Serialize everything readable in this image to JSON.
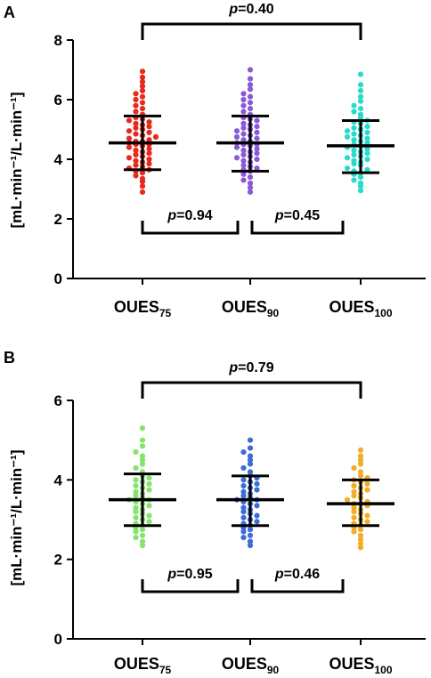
{
  "chart_data": [
    {
      "type": "scatter",
      "panel_label": "A",
      "ylabel": "[mL·min⁻¹/L·min⁻¹]",
      "ylim": [
        0,
        8
      ],
      "yticks": [
        "0",
        "2",
        "4",
        "6",
        "8"
      ],
      "categories": [
        {
          "base": "OUES",
          "sub": "75"
        },
        {
          "base": "OUES",
          "sub": "90"
        },
        {
          "base": "OUES",
          "sub": "100"
        }
      ],
      "colors": [
        "#e8291c",
        "#8a5ad6",
        "#27dccb"
      ],
      "groups": [
        {
          "mean": 4.55,
          "sd_low": 3.65,
          "sd_high": 5.45,
          "min": 2.9,
          "max": 6.95,
          "values": [
            2.9,
            3.1,
            3.25,
            3.35,
            3.45,
            3.55,
            3.6,
            3.65,
            3.7,
            3.75,
            3.8,
            3.85,
            3.9,
            3.95,
            4.0,
            4.05,
            4.1,
            4.15,
            4.2,
            4.25,
            4.3,
            4.35,
            4.4,
            4.45,
            4.5,
            4.5,
            4.55,
            4.6,
            4.6,
            4.65,
            4.7,
            4.75,
            4.8,
            4.85,
            4.9,
            4.95,
            5.0,
            5.05,
            5.1,
            5.15,
            5.2,
            5.25,
            5.3,
            5.35,
            5.4,
            5.5,
            5.6,
            5.7,
            5.8,
            5.9,
            6.0,
            6.1,
            6.2,
            6.3,
            6.45,
            6.6,
            6.75,
            6.95
          ]
        },
        {
          "mean": 4.55,
          "sd_low": 3.6,
          "sd_high": 5.45,
          "min": 2.9,
          "max": 7.0,
          "values": [
            2.9,
            3.05,
            3.2,
            3.3,
            3.4,
            3.5,
            3.6,
            3.65,
            3.7,
            3.75,
            3.8,
            3.9,
            3.95,
            4.0,
            4.05,
            4.1,
            4.15,
            4.2,
            4.25,
            4.3,
            4.35,
            4.4,
            4.45,
            4.5,
            4.5,
            4.55,
            4.6,
            4.65,
            4.7,
            4.75,
            4.8,
            4.85,
            4.9,
            4.95,
            5.0,
            5.05,
            5.1,
            5.15,
            5.2,
            5.3,
            5.35,
            5.4,
            5.5,
            5.6,
            5.7,
            5.8,
            5.9,
            6.0,
            6.1,
            6.2,
            6.35,
            6.5,
            6.7,
            7.0
          ]
        },
        {
          "mean": 4.45,
          "sd_low": 3.55,
          "sd_high": 5.3,
          "min": 2.95,
          "max": 6.85,
          "values": [
            2.95,
            3.1,
            3.2,
            3.3,
            3.4,
            3.5,
            3.55,
            3.6,
            3.65,
            3.7,
            3.8,
            3.85,
            3.9,
            3.95,
            4.0,
            4.05,
            4.1,
            4.15,
            4.2,
            4.25,
            4.3,
            4.35,
            4.4,
            4.45,
            4.5,
            4.55,
            4.6,
            4.65,
            4.7,
            4.75,
            4.8,
            4.85,
            4.9,
            4.95,
            5.0,
            5.05,
            5.1,
            5.2,
            5.25,
            5.3,
            5.4,
            5.5,
            5.6,
            5.7,
            5.8,
            5.95,
            6.1,
            6.3,
            6.5,
            6.85
          ]
        }
      ],
      "comparisons": [
        {
          "from": 0,
          "to": 2,
          "label": "p=0.40",
          "p_letter": "p",
          "p_value": "=0.40",
          "position": "top"
        },
        {
          "from": 0,
          "to": 1,
          "label": "p=0.94",
          "p_letter": "p",
          "p_value": "=0.94",
          "position": "bottom"
        },
        {
          "from": 1,
          "to": 2,
          "label": "p=0.45",
          "p_letter": "p",
          "p_value": "=0.45",
          "position": "bottom"
        }
      ]
    },
    {
      "type": "scatter",
      "panel_label": "B",
      "ylabel": "[mL·min⁻¹/L·min⁻¹]",
      "ylim": [
        0,
        6
      ],
      "yticks": [
        "0",
        "2",
        "4",
        "6"
      ],
      "categories": [
        {
          "base": "OUES",
          "sub": "75"
        },
        {
          "base": "OUES",
          "sub": "90"
        },
        {
          "base": "OUES",
          "sub": "100"
        }
      ],
      "colors": [
        "#86e36b",
        "#3f6bd8",
        "#f2ad24"
      ],
      "groups": [
        {
          "mean": 3.5,
          "sd_low": 2.85,
          "sd_high": 4.15,
          "min": 2.35,
          "max": 5.3,
          "values": [
            2.35,
            2.45,
            2.55,
            2.6,
            2.7,
            2.75,
            2.8,
            2.85,
            2.9,
            2.95,
            3.0,
            3.05,
            3.1,
            3.15,
            3.2,
            3.25,
            3.3,
            3.35,
            3.4,
            3.45,
            3.5,
            3.5,
            3.55,
            3.6,
            3.65,
            3.7,
            3.75,
            3.8,
            3.85,
            3.9,
            3.95,
            4.0,
            4.05,
            4.1,
            4.2,
            4.3,
            4.4,
            4.5,
            4.6,
            4.7,
            4.85,
            5.0,
            5.3
          ]
        },
        {
          "mean": 3.5,
          "sd_low": 2.85,
          "sd_high": 4.1,
          "min": 2.35,
          "max": 5.0,
          "values": [
            2.35,
            2.45,
            2.55,
            2.6,
            2.7,
            2.75,
            2.8,
            2.85,
            2.9,
            2.95,
            3.0,
            3.05,
            3.1,
            3.15,
            3.2,
            3.25,
            3.3,
            3.35,
            3.4,
            3.45,
            3.5,
            3.5,
            3.55,
            3.6,
            3.65,
            3.7,
            3.75,
            3.8,
            3.85,
            3.9,
            3.95,
            4.0,
            4.05,
            4.1,
            4.2,
            4.3,
            4.4,
            4.5,
            4.6,
            4.7,
            4.8,
            5.0
          ]
        },
        {
          "mean": 3.4,
          "sd_low": 2.85,
          "sd_high": 4.0,
          "min": 2.3,
          "max": 4.75,
          "values": [
            2.3,
            2.4,
            2.5,
            2.6,
            2.7,
            2.75,
            2.8,
            2.85,
            2.9,
            2.95,
            3.0,
            3.05,
            3.1,
            3.15,
            3.2,
            3.25,
            3.3,
            3.35,
            3.4,
            3.4,
            3.45,
            3.5,
            3.55,
            3.6,
            3.65,
            3.7,
            3.75,
            3.8,
            3.85,
            3.9,
            3.95,
            4.0,
            4.05,
            4.1,
            4.2,
            4.3,
            4.4,
            4.5,
            4.6,
            4.75
          ]
        }
      ],
      "comparisons": [
        {
          "from": 0,
          "to": 2,
          "label": "p=0.79",
          "p_letter": "p",
          "p_value": "=0.79",
          "position": "top"
        },
        {
          "from": 0,
          "to": 1,
          "label": "p=0.95",
          "p_letter": "p",
          "p_value": "=0.95",
          "position": "bottom"
        },
        {
          "from": 1,
          "to": 2,
          "label": "p=0.46",
          "p_letter": "p",
          "p_value": "=0.46",
          "position": "bottom"
        }
      ]
    }
  ]
}
